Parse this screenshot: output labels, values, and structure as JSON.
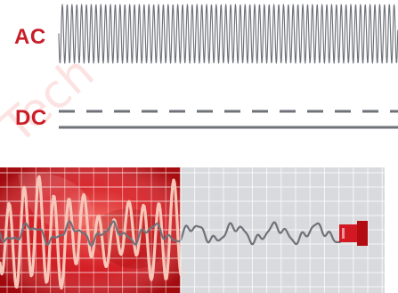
{
  "labels": {
    "ac": "AC",
    "dc": "DC"
  },
  "watermark": {
    "text": "Tech"
  },
  "colors": {
    "brand_red": "#C81E28",
    "dark_gray": "#6f7279",
    "wave_gray": "#6f7279",
    "screen_red": "#b30d13",
    "screen_red_light": "#ef3a3d",
    "screen_gray": "#d9dadd",
    "grid_light": "#f4f4f4",
    "accent_red": "#d21822",
    "trace_light": "#f6c6b9"
  },
  "icons": {
    "plug": "plug-icon"
  }
}
